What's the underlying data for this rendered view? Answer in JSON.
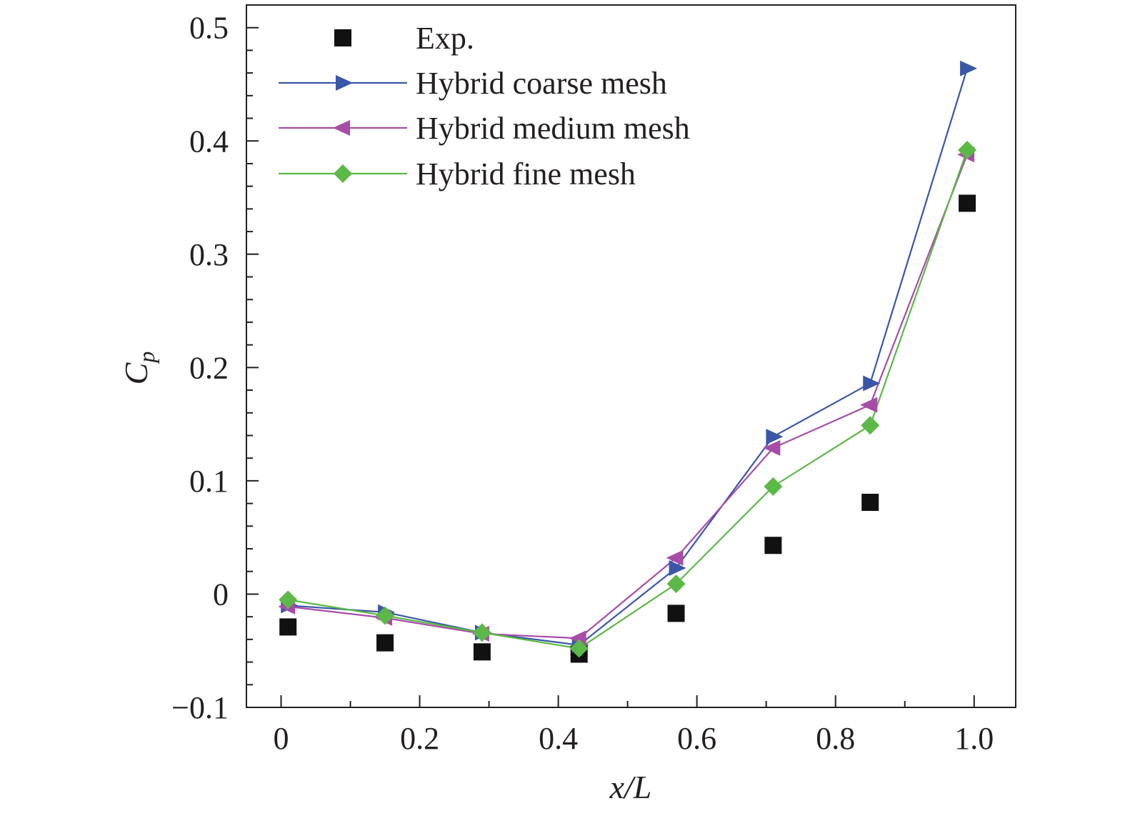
{
  "chart_data": {
    "type": "line",
    "title": "",
    "xlabel": "x/L",
    "ylabel": "Cp",
    "ylabel_main": "C",
    "ylabel_sub": "p",
    "xlim": [
      -0.05,
      1.06
    ],
    "ylim": [
      -0.1,
      0.52
    ],
    "x_ticks": [
      0,
      0.2,
      0.4,
      0.6,
      0.8,
      1.0
    ],
    "x_tick_labels": [
      "0",
      "0.2",
      "0.4",
      "0.6",
      "0.8",
      "1.0"
    ],
    "y_ticks": [
      -0.1,
      0,
      0.1,
      0.2,
      0.3,
      0.4,
      0.5
    ],
    "y_tick_labels": [
      "−0.1",
      "0",
      "0.1",
      "0.2",
      "0.3",
      "0.4",
      "0.5"
    ],
    "x_minor_step": 0.1,
    "y_minor_step": 0.02,
    "grid": false,
    "legend_position": "top-left",
    "series": [
      {
        "name": "Exp.",
        "color": "#111111",
        "marker": "square",
        "line": false,
        "x": [
          0.01,
          0.15,
          0.29,
          0.43,
          0.57,
          0.71,
          0.85,
          0.99
        ],
        "values": [
          -0.029,
          -0.043,
          -0.051,
          -0.053,
          -0.017,
          0.043,
          0.081,
          0.345
        ]
      },
      {
        "name": "Hybrid coarse mesh",
        "color": "#3a57a7",
        "marker": "triangle-right",
        "line": true,
        "x": [
          0.01,
          0.15,
          0.29,
          0.43,
          0.57,
          0.71,
          0.85,
          0.99
        ],
        "values": [
          -0.01,
          -0.016,
          -0.034,
          -0.045,
          0.023,
          0.139,
          0.186,
          0.464
        ]
      },
      {
        "name": "Hybrid medium mesh",
        "color": "#a74da8",
        "marker": "triangle-left",
        "line": true,
        "x": [
          0.01,
          0.15,
          0.29,
          0.43,
          0.57,
          0.71,
          0.85,
          0.99
        ],
        "values": [
          -0.011,
          -0.021,
          -0.035,
          -0.039,
          0.032,
          0.129,
          0.167,
          0.388
        ]
      },
      {
        "name": "Hybrid fine mesh",
        "color": "#5cb847",
        "marker": "diamond",
        "line": true,
        "x": [
          0.01,
          0.15,
          0.29,
          0.43,
          0.57,
          0.71,
          0.85,
          0.99
        ],
        "values": [
          -0.005,
          -0.019,
          -0.034,
          -0.048,
          0.009,
          0.095,
          0.149,
          0.392
        ]
      }
    ]
  }
}
